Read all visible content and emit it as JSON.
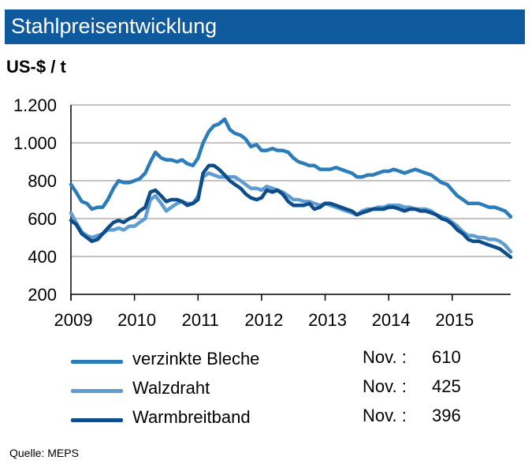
{
  "header": {
    "title": "Stahlpreisentwicklung",
    "unit": "US-$ / t"
  },
  "legend": [
    {
      "label": "verzinkte Bleche",
      "month": "Nov. :",
      "value": "610",
      "color": "#2b7cb9"
    },
    {
      "label": "Walzdraht",
      "month": "Nov. :",
      "value": "425",
      "color": "#5f9cd1"
    },
    {
      "label": "Warmbreitband",
      "month": "Nov. :",
      "value": "396",
      "color": "#0d4e8a"
    }
  ],
  "source": "Quelle:  MEPS",
  "chart_data": {
    "type": "line",
    "ylim": [
      200,
      1200
    ],
    "yticks": [
      "200",
      "400",
      "600",
      "800",
      "1.000",
      "1.200"
    ],
    "xticks": [
      "2009",
      "2010",
      "2011",
      "2012",
      "2013",
      "2014",
      "2015"
    ],
    "xlim": [
      2009.0,
      2015.92
    ],
    "grid": true,
    "series": [
      {
        "name": "verzinkte Bleche",
        "color": "#2b7cb9",
        "points": [
          [
            2009.0,
            780
          ],
          [
            2009.08,
            740
          ],
          [
            2009.17,
            690
          ],
          [
            2009.25,
            680
          ],
          [
            2009.33,
            650
          ],
          [
            2009.42,
            660
          ],
          [
            2009.5,
            660
          ],
          [
            2009.58,
            700
          ],
          [
            2009.67,
            760
          ],
          [
            2009.75,
            800
          ],
          [
            2009.83,
            790
          ],
          [
            2009.92,
            790
          ],
          [
            2010.0,
            800
          ],
          [
            2010.08,
            810
          ],
          [
            2010.17,
            840
          ],
          [
            2010.25,
            900
          ],
          [
            2010.33,
            950
          ],
          [
            2010.42,
            920
          ],
          [
            2010.5,
            910
          ],
          [
            2010.58,
            910
          ],
          [
            2010.67,
            900
          ],
          [
            2010.75,
            910
          ],
          [
            2010.83,
            890
          ],
          [
            2010.92,
            880
          ],
          [
            2011.0,
            920
          ],
          [
            2011.08,
            1000
          ],
          [
            2011.17,
            1060
          ],
          [
            2011.25,
            1090
          ],
          [
            2011.33,
            1100
          ],
          [
            2011.42,
            1125
          ],
          [
            2011.5,
            1070
          ],
          [
            2011.58,
            1050
          ],
          [
            2011.67,
            1040
          ],
          [
            2011.75,
            1020
          ],
          [
            2011.83,
            980
          ],
          [
            2011.92,
            990
          ],
          [
            2012.0,
            960
          ],
          [
            2012.08,
            960
          ],
          [
            2012.17,
            970
          ],
          [
            2012.25,
            960
          ],
          [
            2012.33,
            960
          ],
          [
            2012.42,
            950
          ],
          [
            2012.5,
            920
          ],
          [
            2012.58,
            900
          ],
          [
            2012.67,
            890
          ],
          [
            2012.75,
            880
          ],
          [
            2012.83,
            880
          ],
          [
            2012.92,
            860
          ],
          [
            2013.0,
            860
          ],
          [
            2013.08,
            860
          ],
          [
            2013.17,
            870
          ],
          [
            2013.25,
            860
          ],
          [
            2013.33,
            850
          ],
          [
            2013.42,
            840
          ],
          [
            2013.5,
            820
          ],
          [
            2013.58,
            820
          ],
          [
            2013.67,
            830
          ],
          [
            2013.75,
            830
          ],
          [
            2013.83,
            840
          ],
          [
            2013.92,
            850
          ],
          [
            2014.0,
            850
          ],
          [
            2014.08,
            860
          ],
          [
            2014.17,
            850
          ],
          [
            2014.25,
            840
          ],
          [
            2014.33,
            850
          ],
          [
            2014.42,
            860
          ],
          [
            2014.5,
            850
          ],
          [
            2014.58,
            840
          ],
          [
            2014.67,
            830
          ],
          [
            2014.75,
            810
          ],
          [
            2014.83,
            790
          ],
          [
            2014.92,
            780
          ],
          [
            2015.0,
            750
          ],
          [
            2015.08,
            720
          ],
          [
            2015.17,
            700
          ],
          [
            2015.25,
            680
          ],
          [
            2015.33,
            680
          ],
          [
            2015.42,
            680
          ],
          [
            2015.5,
            670
          ],
          [
            2015.58,
            660
          ],
          [
            2015.67,
            660
          ],
          [
            2015.75,
            650
          ],
          [
            2015.83,
            640
          ],
          [
            2015.92,
            610
          ]
        ]
      },
      {
        "name": "Walzdraht",
        "color": "#5f9cd1",
        "points": [
          [
            2009.0,
            630
          ],
          [
            2009.08,
            580
          ],
          [
            2009.17,
            530
          ],
          [
            2009.25,
            510
          ],
          [
            2009.33,
            500
          ],
          [
            2009.42,
            510
          ],
          [
            2009.5,
            520
          ],
          [
            2009.58,
            540
          ],
          [
            2009.67,
            540
          ],
          [
            2009.75,
            550
          ],
          [
            2009.83,
            540
          ],
          [
            2009.92,
            560
          ],
          [
            2010.0,
            560
          ],
          [
            2010.08,
            580
          ],
          [
            2010.17,
            600
          ],
          [
            2010.25,
            700
          ],
          [
            2010.33,
            720
          ],
          [
            2010.42,
            680
          ],
          [
            2010.5,
            640
          ],
          [
            2010.58,
            660
          ],
          [
            2010.67,
            680
          ],
          [
            2010.75,
            690
          ],
          [
            2010.83,
            680
          ],
          [
            2010.92,
            680
          ],
          [
            2011.0,
            720
          ],
          [
            2011.08,
            820
          ],
          [
            2011.17,
            840
          ],
          [
            2011.25,
            830
          ],
          [
            2011.33,
            820
          ],
          [
            2011.42,
            820
          ],
          [
            2011.5,
            820
          ],
          [
            2011.58,
            820
          ],
          [
            2011.67,
            800
          ],
          [
            2011.75,
            780
          ],
          [
            2011.83,
            760
          ],
          [
            2011.92,
            760
          ],
          [
            2012.0,
            750
          ],
          [
            2012.08,
            770
          ],
          [
            2012.17,
            760
          ],
          [
            2012.25,
            750
          ],
          [
            2012.33,
            740
          ],
          [
            2012.42,
            720
          ],
          [
            2012.5,
            700
          ],
          [
            2012.58,
            700
          ],
          [
            2012.67,
            690
          ],
          [
            2012.75,
            690
          ],
          [
            2012.83,
            680
          ],
          [
            2012.92,
            670
          ],
          [
            2013.0,
            680
          ],
          [
            2013.08,
            670
          ],
          [
            2013.17,
            660
          ],
          [
            2013.25,
            650
          ],
          [
            2013.33,
            640
          ],
          [
            2013.42,
            630
          ],
          [
            2013.5,
            620
          ],
          [
            2013.58,
            640
          ],
          [
            2013.67,
            650
          ],
          [
            2013.75,
            650
          ],
          [
            2013.83,
            660
          ],
          [
            2013.92,
            660
          ],
          [
            2014.0,
            670
          ],
          [
            2014.08,
            670
          ],
          [
            2014.17,
            670
          ],
          [
            2014.25,
            660
          ],
          [
            2014.33,
            660
          ],
          [
            2014.42,
            650
          ],
          [
            2014.5,
            650
          ],
          [
            2014.58,
            650
          ],
          [
            2014.67,
            640
          ],
          [
            2014.75,
            620
          ],
          [
            2014.83,
            610
          ],
          [
            2014.92,
            600
          ],
          [
            2015.0,
            580
          ],
          [
            2015.08,
            560
          ],
          [
            2015.17,
            530
          ],
          [
            2015.25,
            510
          ],
          [
            2015.33,
            510
          ],
          [
            2015.42,
            500
          ],
          [
            2015.5,
            500
          ],
          [
            2015.58,
            490
          ],
          [
            2015.67,
            490
          ],
          [
            2015.75,
            480
          ],
          [
            2015.83,
            460
          ],
          [
            2015.92,
            425
          ]
        ]
      },
      {
        "name": "Warmbreitband",
        "color": "#0d4e8a",
        "points": [
          [
            2009.0,
            590
          ],
          [
            2009.08,
            570
          ],
          [
            2009.17,
            520
          ],
          [
            2009.25,
            500
          ],
          [
            2009.33,
            480
          ],
          [
            2009.42,
            490
          ],
          [
            2009.5,
            520
          ],
          [
            2009.58,
            550
          ],
          [
            2009.67,
            580
          ],
          [
            2009.75,
            590
          ],
          [
            2009.83,
            580
          ],
          [
            2009.92,
            600
          ],
          [
            2010.0,
            610
          ],
          [
            2010.08,
            640
          ],
          [
            2010.17,
            660
          ],
          [
            2010.25,
            740
          ],
          [
            2010.33,
            750
          ],
          [
            2010.42,
            720
          ],
          [
            2010.5,
            690
          ],
          [
            2010.58,
            700
          ],
          [
            2010.67,
            700
          ],
          [
            2010.75,
            690
          ],
          [
            2010.83,
            670
          ],
          [
            2010.92,
            680
          ],
          [
            2011.0,
            700
          ],
          [
            2011.08,
            840
          ],
          [
            2011.17,
            880
          ],
          [
            2011.25,
            880
          ],
          [
            2011.33,
            860
          ],
          [
            2011.42,
            830
          ],
          [
            2011.5,
            800
          ],
          [
            2011.58,
            780
          ],
          [
            2011.67,
            760
          ],
          [
            2011.75,
            730
          ],
          [
            2011.83,
            710
          ],
          [
            2011.92,
            700
          ],
          [
            2012.0,
            710
          ],
          [
            2012.08,
            750
          ],
          [
            2012.17,
            740
          ],
          [
            2012.25,
            750
          ],
          [
            2012.33,
            730
          ],
          [
            2012.42,
            690
          ],
          [
            2012.5,
            670
          ],
          [
            2012.58,
            670
          ],
          [
            2012.67,
            670
          ],
          [
            2012.75,
            680
          ],
          [
            2012.83,
            650
          ],
          [
            2012.92,
            660
          ],
          [
            2013.0,
            680
          ],
          [
            2013.08,
            680
          ],
          [
            2013.17,
            670
          ],
          [
            2013.25,
            660
          ],
          [
            2013.33,
            650
          ],
          [
            2013.42,
            640
          ],
          [
            2013.5,
            620
          ],
          [
            2013.58,
            630
          ],
          [
            2013.67,
            640
          ],
          [
            2013.75,
            650
          ],
          [
            2013.83,
            650
          ],
          [
            2013.92,
            650
          ],
          [
            2014.0,
            660
          ],
          [
            2014.08,
            660
          ],
          [
            2014.17,
            650
          ],
          [
            2014.25,
            640
          ],
          [
            2014.33,
            650
          ],
          [
            2014.42,
            650
          ],
          [
            2014.5,
            640
          ],
          [
            2014.58,
            640
          ],
          [
            2014.67,
            630
          ],
          [
            2014.75,
            620
          ],
          [
            2014.83,
            600
          ],
          [
            2014.92,
            590
          ],
          [
            2015.0,
            570
          ],
          [
            2015.08,
            540
          ],
          [
            2015.17,
            520
          ],
          [
            2015.25,
            490
          ],
          [
            2015.33,
            480
          ],
          [
            2015.42,
            480
          ],
          [
            2015.5,
            470
          ],
          [
            2015.58,
            460
          ],
          [
            2015.67,
            450
          ],
          [
            2015.75,
            440
          ],
          [
            2015.83,
            420
          ],
          [
            2015.92,
            396
          ]
        ]
      }
    ]
  }
}
